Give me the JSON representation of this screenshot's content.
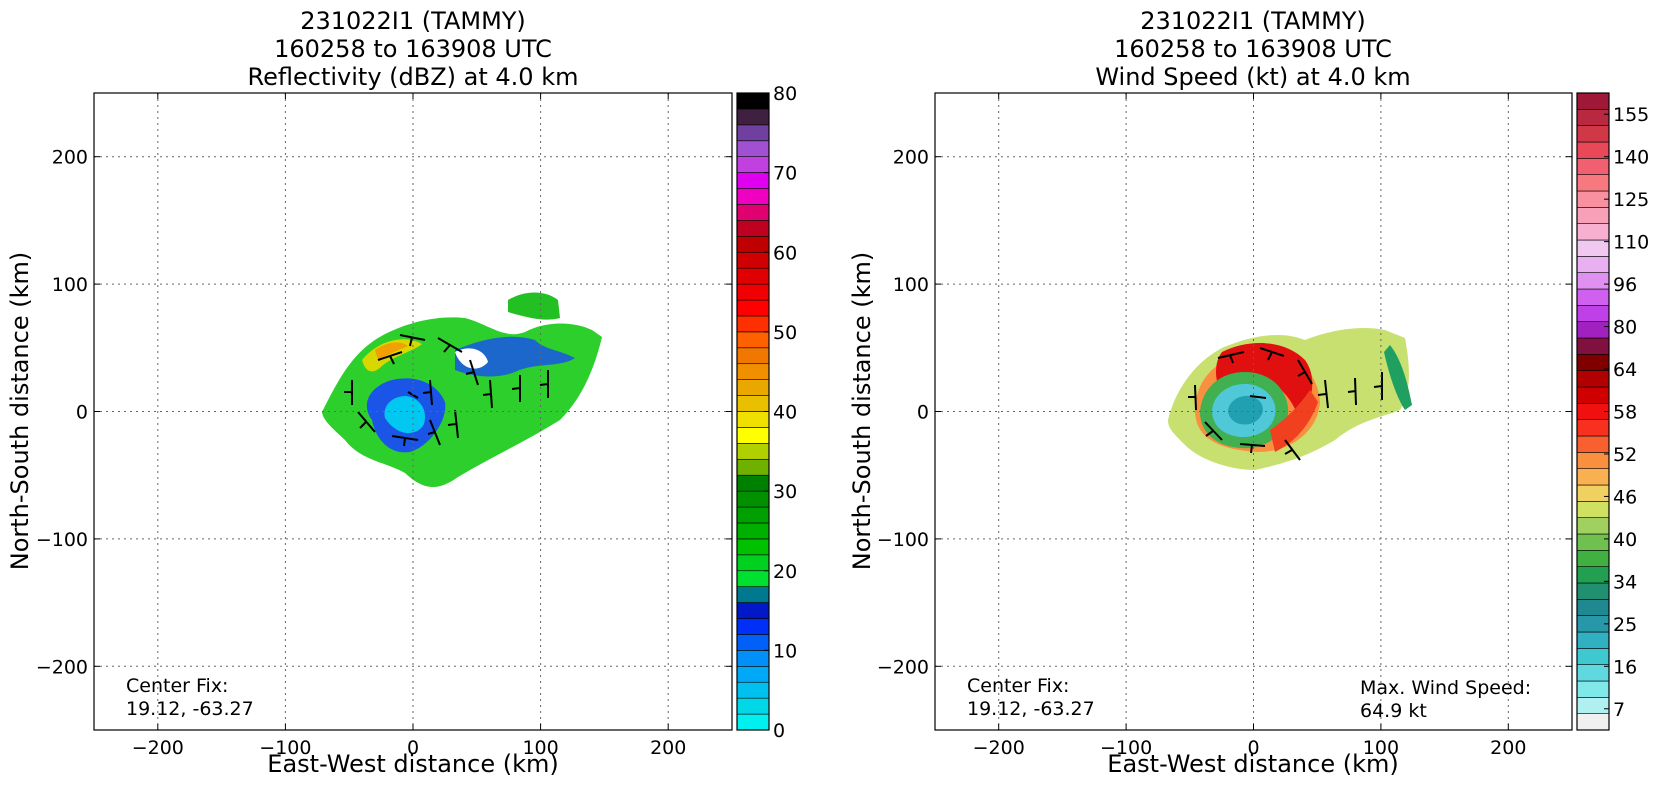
{
  "chart_data": [
    {
      "type": "heatmap",
      "title_lines": [
        "231022I1 (TAMMY)",
        "160258 to 163908 UTC",
        "Reflectivity (dBZ) at 4.0 km"
      ],
      "xlabel": "East-West distance (km)",
      "ylabel": "North-South distance (km)",
      "xlim": [
        -250,
        250
      ],
      "ylim": [
        -250,
        250
      ],
      "x_ticks": [
        -200,
        -100,
        0,
        100,
        200
      ],
      "y_ticks": [
        -200,
        -100,
        0,
        100,
        200
      ],
      "grid": true,
      "annotations": [
        {
          "lines": [
            "Center Fix:",
            "19.12, -63.27"
          ],
          "position": "bottom-left"
        }
      ],
      "colorbar": {
        "min": 0,
        "max": 80,
        "tick_labels": [
          "80",
          "70",
          "60",
          "50",
          "40",
          "30",
          "20",
          "10",
          "0"
        ],
        "colors": [
          "#00f0f0",
          "#00d8e8",
          "#00c0f0",
          "#00a8f8",
          "#0090f8",
          "#0060f8",
          "#0030f8",
          "#0018c8",
          "#007890",
          "#00e030",
          "#00d020",
          "#00c000",
          "#00b000",
          "#00a000",
          "#009000",
          "#008000",
          "#70b000",
          "#b0d000",
          "#ffff00",
          "#f0e000",
          "#e8c000",
          "#e8a800",
          "#f09000",
          "#f07800",
          "#ff6000",
          "#ff3000",
          "#ff0000",
          "#f00000",
          "#e00000",
          "#d00000",
          "#c00000",
          "#c00020",
          "#e00070",
          "#f000c0",
          "#e000f0",
          "#c040e0",
          "#a050d0",
          "#7040a0",
          "#402040",
          "#000000"
        ]
      },
      "wind_barbs": true
    },
    {
      "type": "heatmap",
      "title_lines": [
        "231022I1 (TAMMY)",
        "160258 to 163908 UTC",
        "Wind Speed (kt) at 4.0 km"
      ],
      "xlabel": "East-West distance (km)",
      "ylabel": "North-South distance (km)",
      "xlim": [
        -250,
        250
      ],
      "ylim": [
        -250,
        250
      ],
      "x_ticks": [
        -200,
        -100,
        0,
        100,
        200
      ],
      "y_ticks": [
        -200,
        -100,
        0,
        100,
        200
      ],
      "grid": true,
      "annotations": [
        {
          "lines": [
            "Center Fix:",
            "19.12, -63.27"
          ],
          "position": "bottom-left"
        },
        {
          "lines": [
            "Max. Wind Speed:",
            "64.9 kt"
          ],
          "position": "bottom-right"
        }
      ],
      "colorbar": {
        "tick_labels": [
          "155",
          "140",
          "125",
          "110",
          "96",
          "80",
          "64",
          "58",
          "52",
          "46",
          "40",
          "34",
          "25",
          "16",
          "7"
        ],
        "colors": [
          "#f0f0f0",
          "#b0f0f0",
          "#80e8e8",
          "#60d8e0",
          "#40c8d0",
          "#30b0c0",
          "#2898a8",
          "#208890",
          "#209070",
          "#20a050",
          "#40b040",
          "#70c050",
          "#a0d060",
          "#d0e060",
          "#f0d060",
          "#f8b050",
          "#f89040",
          "#f86030",
          "#f83020",
          "#f01010",
          "#d00000",
          "#b00000",
          "#800000",
          "#801040",
          "#a020c0",
          "#c040e8",
          "#d060f0",
          "#e090f0",
          "#e8b0f0",
          "#f0c8f0",
          "#f8b0d0",
          "#f8a0b8",
          "#f890a0",
          "#f87880",
          "#f06070",
          "#e84858",
          "#d03848",
          "#b82840",
          "#a01838"
        ]
      },
      "wind_barbs": true,
      "max_wind_speed_kt": 64.9
    }
  ]
}
